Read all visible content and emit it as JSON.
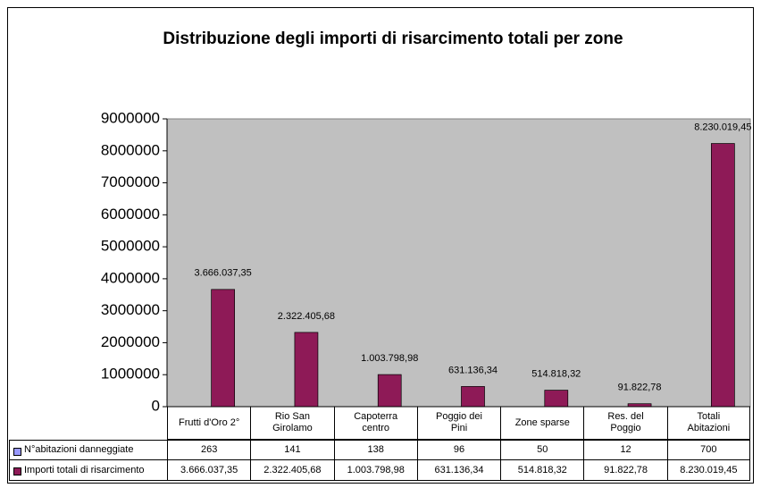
{
  "chart_data": {
    "type": "bar",
    "title": "Distribuzione degli importi di risarcimento totali per zone",
    "categories": [
      "Frutti d'Oro 2°",
      "Rio San Girolamo",
      "Capoterra centro",
      "Poggio dei Pini",
      "Zone sparse",
      "Res. del Poggio",
      "Totali Abitazioni"
    ],
    "series": [
      {
        "name": "N°abitazioni danneggiate",
        "color": "#9999ff",
        "values": [
          263,
          141,
          138,
          96,
          50,
          12,
          700
        ]
      },
      {
        "name": "Importi totali di risarcimento",
        "color": "#8e1a57",
        "values": [
          3666037.35,
          2322405.68,
          1003798.98,
          631136.34,
          514818.32,
          91822.78,
          8230019.45
        ],
        "value_labels": [
          "3.666.037,35",
          "2.322.405,68",
          "1.003.798,98",
          "631.136,34",
          "514.818,32",
          "91.822,78",
          "8.230.019,45"
        ]
      }
    ],
    "ylim": [
      0,
      9000000
    ],
    "yticks": [
      0,
      1000000,
      2000000,
      3000000,
      4000000,
      5000000,
      6000000,
      7000000,
      8000000,
      9000000
    ],
    "grid": false,
    "plot_background": "#c0c0c0"
  }
}
